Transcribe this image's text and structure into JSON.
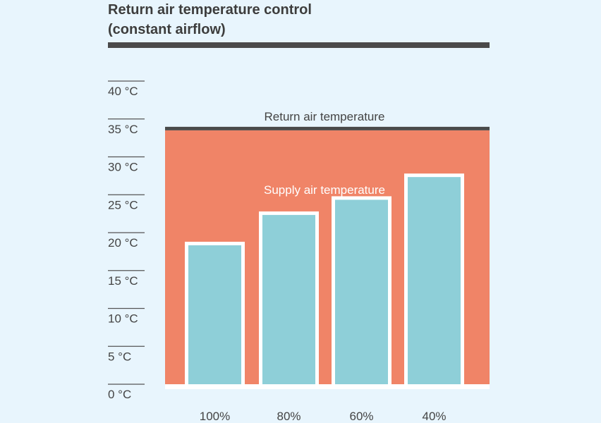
{
  "chart_data": {
    "type": "bar",
    "title_lines": [
      "Return air temperature control",
      "(constant airflow)"
    ],
    "categories": [
      "100%",
      "80%",
      "60%",
      "40%"
    ],
    "series": [
      {
        "name": "Supply air temperature",
        "values": [
          18.8,
          22.8,
          24.8,
          27.8
        ]
      }
    ],
    "return_air": {
      "label": "Return air temperature",
      "value": 33.5
    },
    "y_ticks": [
      "0 °C",
      "5 °C",
      "10 °C",
      "15 °C",
      "20 °C",
      "25 °C",
      "30 °C",
      "35 °C",
      "40 °C"
    ],
    "y_tick_values": [
      0,
      5,
      10,
      15,
      20,
      25,
      30,
      35,
      40
    ],
    "ylim": [
      0,
      40
    ],
    "colors": {
      "background": "#e8f5fd",
      "return_area": "#f08467",
      "bar_fill": "#8ecfd8",
      "bar_outline": "#ffffff",
      "rule": "#4a4a4a"
    }
  }
}
